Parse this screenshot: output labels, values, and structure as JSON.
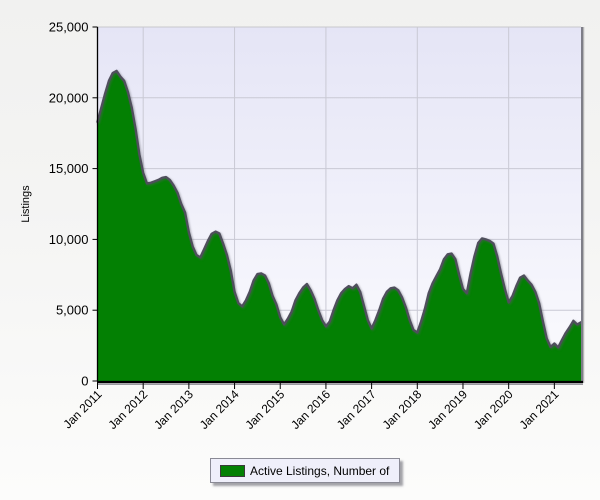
{
  "chart_data": {
    "type": "area",
    "title": "",
    "ylabel": "Listings",
    "xlabel": "",
    "grid": true,
    "legend_position": "bottom",
    "x_axis": {
      "tick_labels": [
        "Jan 2011",
        "Jan 2012",
        "Jan 2013",
        "Jan 2014",
        "Jan 2015",
        "Jan 2016",
        "Jan 2017",
        "Jan 2018",
        "Jan 2019",
        "Jan 2020",
        "Jan 2021"
      ],
      "tick_month_indices": [
        0,
        12,
        24,
        36,
        48,
        60,
        72,
        84,
        96,
        108,
        120
      ],
      "vgrid_month_indices": [
        12,
        36,
        60,
        84,
        108
      ]
    },
    "y_axis": {
      "min": 0,
      "max": 25000,
      "tick_values": [
        0,
        5000,
        10000,
        15000,
        20000,
        25000
      ],
      "tick_labels": [
        "0",
        "5,000",
        "10,000",
        "15,000",
        "20,000",
        "25,000"
      ]
    },
    "series": [
      {
        "name": "Active Listings, Number of",
        "start": "Jan 2011",
        "interval": "monthly",
        "values": [
          18300,
          19300,
          20300,
          21200,
          21750,
          21900,
          21500,
          21200,
          20400,
          19300,
          17800,
          16000,
          14700,
          13950,
          14000,
          14100,
          14200,
          14350,
          14400,
          14200,
          13800,
          13300,
          12500,
          11900,
          10500,
          9500,
          8900,
          8730,
          9300,
          9900,
          10400,
          10550,
          10420,
          9700,
          8900,
          7800,
          6300,
          5500,
          5270,
          5700,
          6300,
          7100,
          7550,
          7600,
          7450,
          6900,
          6000,
          5400,
          4500,
          4000,
          4400,
          4900,
          5700,
          6200,
          6600,
          6850,
          6400,
          5800,
          5000,
          4300,
          3860,
          4200,
          5000,
          5700,
          6200,
          6500,
          6700,
          6550,
          6800,
          6300,
          5300,
          4300,
          3710,
          4300,
          5000,
          5800,
          6300,
          6550,
          6600,
          6400,
          5900,
          5200,
          4300,
          3600,
          3430,
          4200,
          5100,
          6200,
          6890,
          7400,
          7900,
          8600,
          8950,
          9000,
          8600,
          7500,
          6500,
          6200,
          7600,
          8800,
          9750,
          10070,
          10000,
          9900,
          9700,
          8800,
          7600,
          6500,
          5550,
          6000,
          6700,
          7300,
          7450,
          7100,
          6800,
          6300,
          5500,
          4200,
          3000,
          2400,
          2650,
          2370,
          2900,
          3400,
          3800,
          4250,
          3990,
          4150
        ]
      }
    ],
    "legend": {
      "entries": [
        {
          "label": "Active Listings, Number of",
          "color": "#038003"
        }
      ]
    }
  },
  "colors": {
    "area_fill": "#038003",
    "area_stroke": "#4f4f5c",
    "plot_bg_top": "#e5e5f6",
    "plot_bg_bottom": "#fbfbfe",
    "gridline": "#c9c9d4",
    "axis": "#000000",
    "plot_border_right": "#7e7e88",
    "plot_border_right_shadow": "#b5b5b5",
    "plot_border_top": "#c8c8cc",
    "legend_bg": "#efeffa",
    "legend_border": "#8a8a95",
    "text": "#000000"
  }
}
